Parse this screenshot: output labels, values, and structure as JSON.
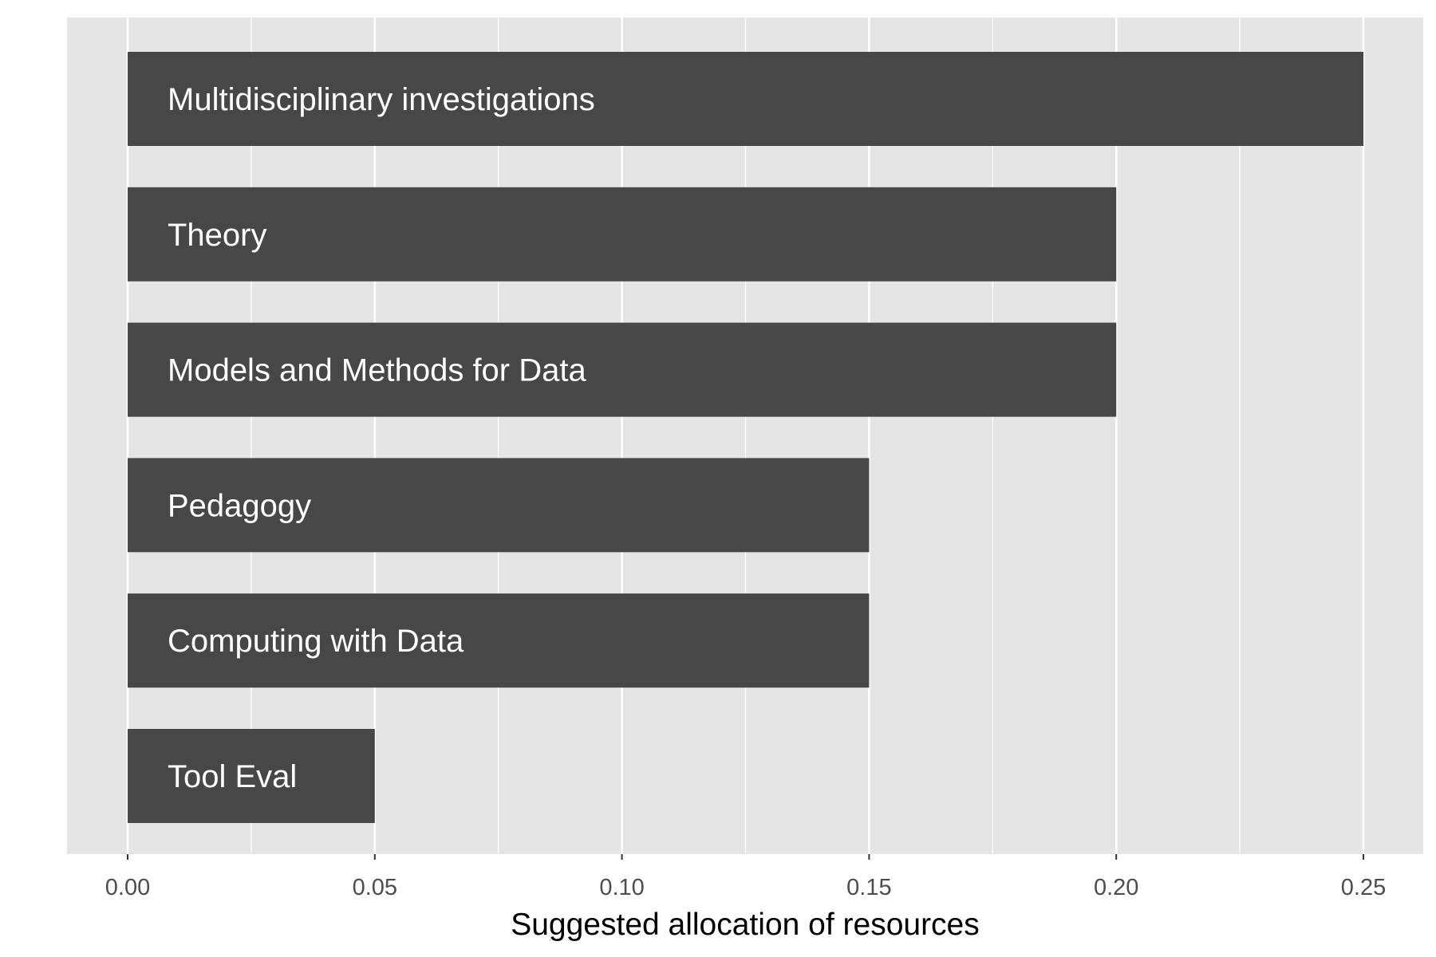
{
  "chart_data": {
    "type": "bar",
    "orientation": "horizontal",
    "categories": [
      "Multidisciplinary investigations",
      "Theory",
      "Models and Methods for Data",
      "Pedagogy",
      "Computing with Data",
      "Tool Eval"
    ],
    "values": [
      0.25,
      0.2,
      0.2,
      0.15,
      0.15,
      0.05
    ],
    "title": "",
    "xlabel": "Suggested allocation of resources",
    "ylabel": "",
    "xlim": [
      0,
      0.25
    ],
    "x_ticks": [
      0.0,
      0.05,
      0.1,
      0.15,
      0.2,
      0.25
    ],
    "x_tick_labels": [
      "0.00",
      "0.05",
      "0.10",
      "0.15",
      "0.20",
      "0.25"
    ],
    "grid": true,
    "legend": "none",
    "colors": {
      "panel_background": "#e5e5e5",
      "grid_major": "#ffffff",
      "bar_fill": "#474747",
      "bar_label": "#ffffff",
      "tick_label": "#4d4d4d",
      "axis_title": "#000000"
    }
  }
}
